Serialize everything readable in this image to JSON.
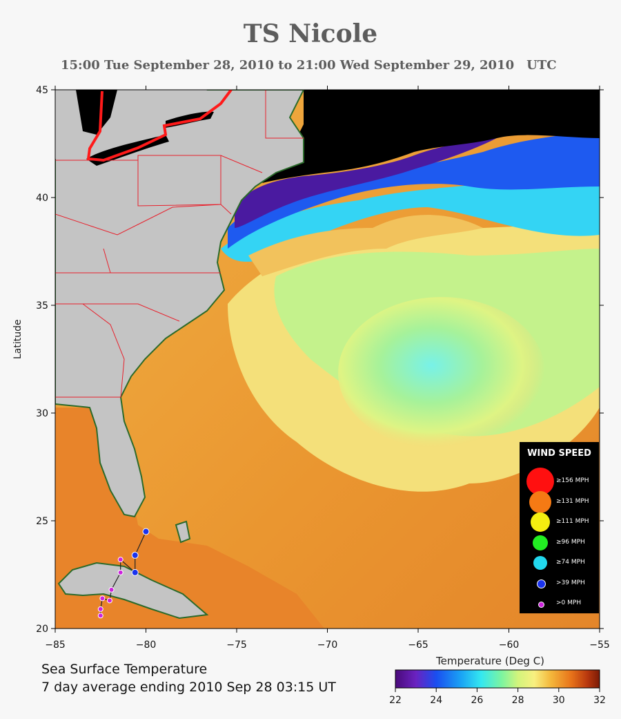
{
  "header": {
    "title": "TS Nicole",
    "subtitle": "15:00 Tue September 28, 2010 to 21:00 Wed September 29, 2010",
    "timezone": "UTC"
  },
  "axes": {
    "ylabel": "Latitude",
    "lon_ticks": [
      "−85",
      "−80",
      "−75",
      "−70",
      "−65",
      "−60",
      "−55"
    ],
    "lat_ticks": [
      "45",
      "40",
      "35",
      "30",
      "25",
      "20"
    ]
  },
  "footer": {
    "line1": "Sea Surface Temperature",
    "line2": "7 day average ending 2010 Sep 28 03:15 UT"
  },
  "colorbar": {
    "label": "Temperature (Deg C)",
    "ticks": [
      "22",
      "24",
      "26",
      "28",
      "30",
      "32"
    ],
    "range": [
      22,
      32
    ]
  },
  "legend": {
    "title": "WIND SPEED",
    "items": [
      {
        "label": "≥156 MPH",
        "color": "#ff1010"
      },
      {
        "label": "≥131 MPH",
        "color": "#f57a14"
      },
      {
        "label": "≥111 MPH",
        "color": "#f4ee10"
      },
      {
        "label": "≥96 MPH",
        "color": "#22ee22"
      },
      {
        "label": "≥74 MPH",
        "color": "#22d8ee"
      },
      {
        "label": ">39 MPH",
        "color": "#1a33ee"
      },
      {
        "label": ">0 MPH",
        "color": "#cc22dd"
      }
    ]
  },
  "storm_track": {
    "points": [
      {
        "lon": -82.5,
        "lat": 20.6,
        "category": ">0 MPH"
      },
      {
        "lon": -82.5,
        "lat": 20.9,
        "category": ">0 MPH"
      },
      {
        "lon": -82.4,
        "lat": 21.4,
        "category": ">0 MPH"
      },
      {
        "lon": -82.0,
        "lat": 21.3,
        "category": ">0 MPH"
      },
      {
        "lon": -81.9,
        "lat": 21.8,
        "category": ">0 MPH"
      },
      {
        "lon": -81.4,
        "lat": 22.6,
        "category": ">0 MPH"
      },
      {
        "lon": -81.4,
        "lat": 23.2,
        "category": ">0 MPH"
      },
      {
        "lon": -80.6,
        "lat": 22.6,
        "category": ">39 MPH"
      },
      {
        "lon": -80.6,
        "lat": 23.4,
        "category": ">39 MPH"
      },
      {
        "lon": -80.0,
        "lat": 24.5,
        "category": ">39 MPH"
      }
    ]
  },
  "colors": {
    "land": "#c4c4c4",
    "coastal_cold": "#000000",
    "borders": "#e8202c",
    "great_lakes_border": "#ff1a1a"
  }
}
